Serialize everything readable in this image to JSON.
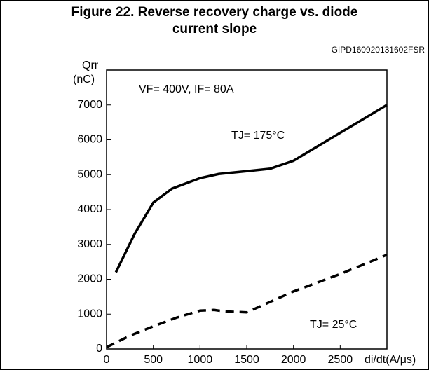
{
  "chart_data": {
    "type": "line",
    "title": "Figure 22. Reverse recovery charge vs. diode",
    "subtitle": "current slope",
    "code": "GIPD160920131602FSR",
    "y_label": "Qrr",
    "y_unit": "(nC)",
    "x_label": "di/dt(A/μs)",
    "annotation": "VF= 400V, IF= 80A",
    "xlim": [
      0,
      3000
    ],
    "xticks": [
      0,
      500,
      1000,
      1500,
      2000,
      2500
    ],
    "ylim": [
      0,
      8000
    ],
    "yticks": [
      0,
      1000,
      2000,
      3000,
      4000,
      5000,
      6000,
      7000
    ],
    "series": [
      {
        "name": "TJ= 175°C",
        "color": "#000000",
        "dash": false,
        "x": [
          100,
          300,
          500,
          700,
          1000,
          1200,
          1500,
          1750,
          2000,
          2500,
          3000
        ],
        "values": [
          2200,
          3300,
          4200,
          4600,
          4900,
          5020,
          5100,
          5170,
          5400,
          6200,
          7000
        ]
      },
      {
        "name": "TJ= 25°C",
        "color": "#000000",
        "dash": true,
        "x": [
          0,
          250,
          500,
          750,
          1000,
          1150,
          1250,
          1500,
          1750,
          2000,
          2500,
          3000
        ],
        "values": [
          50,
          380,
          650,
          900,
          1100,
          1120,
          1080,
          1050,
          1350,
          1650,
          2150,
          2700
        ]
      }
    ]
  }
}
